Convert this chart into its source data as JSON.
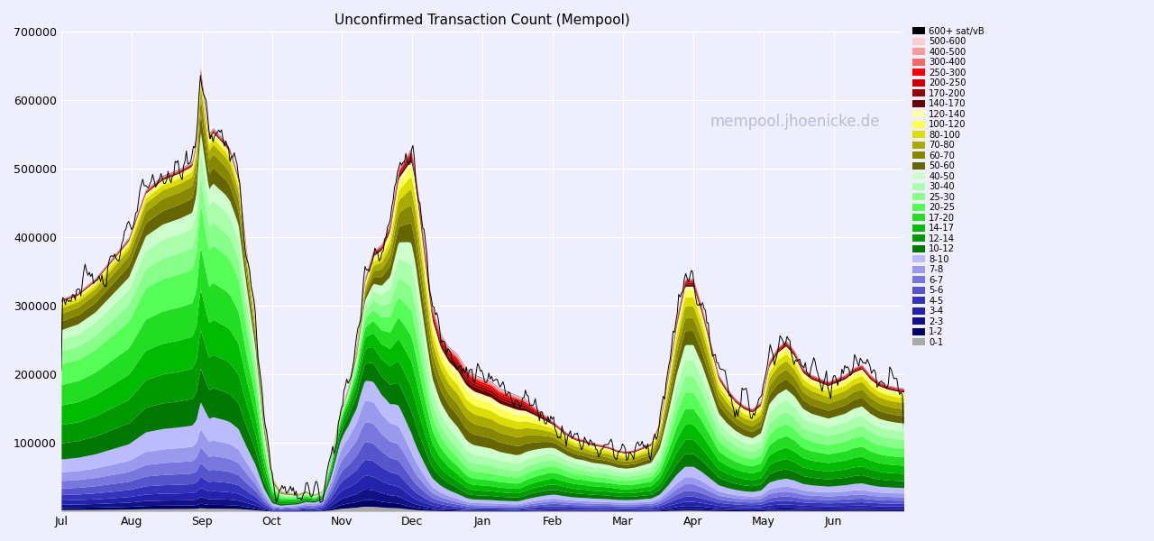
{
  "title": "Unconfirmed Transaction Count (Mempool)",
  "watermark": "mempool.jhoenicke.de",
  "x_labels": [
    "Jul",
    "Aug",
    "Sep",
    "Oct",
    "Nov",
    "Dec",
    "Jan",
    "Feb",
    "Mar",
    "Apr",
    "May",
    "Jun"
  ],
  "ylim": [
    0,
    700000
  ],
  "legend_labels": [
    "600+ sat/vB",
    "500-600",
    "400-500",
    "300-400",
    "250-300",
    "200-250",
    "170-200",
    "140-170",
    "120-140",
    "100-120",
    "80-100",
    "70-80",
    "60-70",
    "50-60",
    "40-50",
    "30-40",
    "25-30",
    "20-25",
    "17-20",
    "14-17",
    "12-14",
    "10-12",
    "8-10",
    "7-8",
    "6-7",
    "5-6",
    "4-5",
    "3-4",
    "2-3",
    "1-2",
    "0-1"
  ],
  "legend_colors": [
    "#000000",
    "#ffcccc",
    "#ff9999",
    "#ff6666",
    "#ff0000",
    "#cc0000",
    "#990000",
    "#660000",
    "#ffffaa",
    "#ffff55",
    "#dddd00",
    "#aaaa00",
    "#888800",
    "#666600",
    "#ccffcc",
    "#aaffaa",
    "#88ff88",
    "#55ff55",
    "#22dd22",
    "#00bb00",
    "#009900",
    "#007700",
    "#bbbbff",
    "#9999ee",
    "#7777dd",
    "#5555cc",
    "#3333bb",
    "#2222aa",
    "#111188",
    "#000066",
    "#aaaaaa"
  ],
  "background_color": "#eeeeff",
  "grid_color": "#ffffff",
  "n_points": 600,
  "envelope_keypoints": [
    [
      0.0,
      310000
    ],
    [
      0.02,
      320000
    ],
    [
      0.04,
      340000
    ],
    [
      0.06,
      370000
    ],
    [
      0.08,
      400000
    ],
    [
      0.1,
      470000
    ],
    [
      0.12,
      490000
    ],
    [
      0.14,
      500000
    ],
    [
      0.155,
      510000
    ],
    [
      0.16,
      540000
    ],
    [
      0.165,
      650000
    ],
    [
      0.17,
      600000
    ],
    [
      0.175,
      550000
    ],
    [
      0.18,
      560000
    ],
    [
      0.195,
      540000
    ],
    [
      0.2,
      530000
    ],
    [
      0.21,
      490000
    ],
    [
      0.22,
      380000
    ],
    [
      0.23,
      280000
    ],
    [
      0.24,
      140000
    ],
    [
      0.25,
      50000
    ],
    [
      0.26,
      30000
    ],
    [
      0.27,
      28000
    ],
    [
      0.28,
      26000
    ],
    [
      0.29,
      30000
    ],
    [
      0.3,
      25000
    ],
    [
      0.31,
      30000
    ],
    [
      0.32,
      80000
    ],
    [
      0.33,
      140000
    ],
    [
      0.34,
      180000
    ],
    [
      0.35,
      240000
    ],
    [
      0.36,
      340000
    ],
    [
      0.37,
      380000
    ],
    [
      0.38,
      390000
    ],
    [
      0.39,
      420000
    ],
    [
      0.4,
      500000
    ],
    [
      0.41,
      520000
    ],
    [
      0.415,
      530000
    ],
    [
      0.42,
      500000
    ],
    [
      0.43,
      400000
    ],
    [
      0.44,
      300000
    ],
    [
      0.45,
      260000
    ],
    [
      0.46,
      240000
    ],
    [
      0.47,
      230000
    ],
    [
      0.48,
      210000
    ],
    [
      0.49,
      200000
    ],
    [
      0.5,
      195000
    ],
    [
      0.51,
      190000
    ],
    [
      0.52,
      180000
    ],
    [
      0.53,
      175000
    ],
    [
      0.54,
      170000
    ],
    [
      0.55,
      165000
    ],
    [
      0.56,
      155000
    ],
    [
      0.57,
      145000
    ],
    [
      0.58,
      135000
    ],
    [
      0.59,
      125000
    ],
    [
      0.6,
      115000
    ],
    [
      0.61,
      108000
    ],
    [
      0.62,
      105000
    ],
    [
      0.63,
      100000
    ],
    [
      0.64,
      98000
    ],
    [
      0.65,
      95000
    ],
    [
      0.66,
      90000
    ],
    [
      0.67,
      88000
    ],
    [
      0.68,
      90000
    ],
    [
      0.69,
      95000
    ],
    [
      0.7,
      100000
    ],
    [
      0.71,
      130000
    ],
    [
      0.72,
      200000
    ],
    [
      0.73,
      280000
    ],
    [
      0.74,
      340000
    ],
    [
      0.75,
      340000
    ],
    [
      0.76,
      300000
    ],
    [
      0.77,
      250000
    ],
    [
      0.78,
      200000
    ],
    [
      0.79,
      180000
    ],
    [
      0.8,
      165000
    ],
    [
      0.81,
      155000
    ],
    [
      0.82,
      150000
    ],
    [
      0.83,
      160000
    ],
    [
      0.84,
      220000
    ],
    [
      0.85,
      240000
    ],
    [
      0.86,
      250000
    ],
    [
      0.87,
      235000
    ],
    [
      0.88,
      210000
    ],
    [
      0.89,
      200000
    ],
    [
      0.9,
      195000
    ],
    [
      0.91,
      190000
    ],
    [
      0.92,
      195000
    ],
    [
      0.93,
      200000
    ],
    [
      0.94,
      210000
    ],
    [
      0.95,
      215000
    ],
    [
      0.96,
      200000
    ],
    [
      0.97,
      190000
    ],
    [
      0.98,
      185000
    ],
    [
      0.99,
      182000
    ],
    [
      1.0,
      180000
    ]
  ],
  "band_fracs": {
    "jul_sep": [
      0.008,
      0.01,
      0.015,
      0.02,
      0.025,
      0.03,
      0.035,
      0.04,
      0.06,
      0.075,
      0.085,
      0.09,
      0.095,
      0.095,
      0.06,
      0.055,
      0.045,
      0.04,
      0.035,
      0.025,
      0.015,
      0.01,
      0.005,
      0.003,
      0.002,
      0.002,
      0.001,
      0.001,
      0.001,
      0.001,
      0.001
    ],
    "oct": [
      0.03,
      0.04,
      0.06,
      0.08,
      0.09,
      0.1,
      0.11,
      0.12,
      0.1,
      0.08,
      0.06,
      0.04,
      0.03,
      0.02,
      0.015,
      0.01,
      0.005,
      0.003,
      0.002,
      0.001,
      0.001,
      0.001,
      0.001,
      0.001,
      0.001,
      0.001,
      0.001,
      0.001,
      0.001,
      0.001,
      0.001
    ],
    "nov_dec": [
      0.005,
      0.007,
      0.01,
      0.015,
      0.02,
      0.025,
      0.03,
      0.035,
      0.05,
      0.06,
      0.065,
      0.07,
      0.07,
      0.07,
      0.065,
      0.065,
      0.06,
      0.055,
      0.05,
      0.045,
      0.035,
      0.028,
      0.015,
      0.01,
      0.007,
      0.005,
      0.004,
      0.003,
      0.002,
      0.001,
      0.001
    ],
    "jan_spike": [
      0.002,
      0.003,
      0.004,
      0.005,
      0.006,
      0.008,
      0.01,
      0.012,
      0.02,
      0.025,
      0.028,
      0.03,
      0.035,
      0.04,
      0.045,
      0.05,
      0.055,
      0.06,
      0.06,
      0.055,
      0.05,
      0.045,
      0.035,
      0.025,
      0.018,
      0.015,
      0.012,
      0.01,
      0.008,
      0.005,
      0.002
    ],
    "feb_jun": [
      0.005,
      0.008,
      0.012,
      0.018,
      0.022,
      0.025,
      0.028,
      0.03,
      0.045,
      0.055,
      0.06,
      0.065,
      0.068,
      0.07,
      0.07,
      0.068,
      0.065,
      0.06,
      0.055,
      0.05,
      0.04,
      0.03,
      0.015,
      0.01,
      0.007,
      0.005,
      0.004,
      0.003,
      0.002,
      0.001,
      0.001
    ]
  }
}
